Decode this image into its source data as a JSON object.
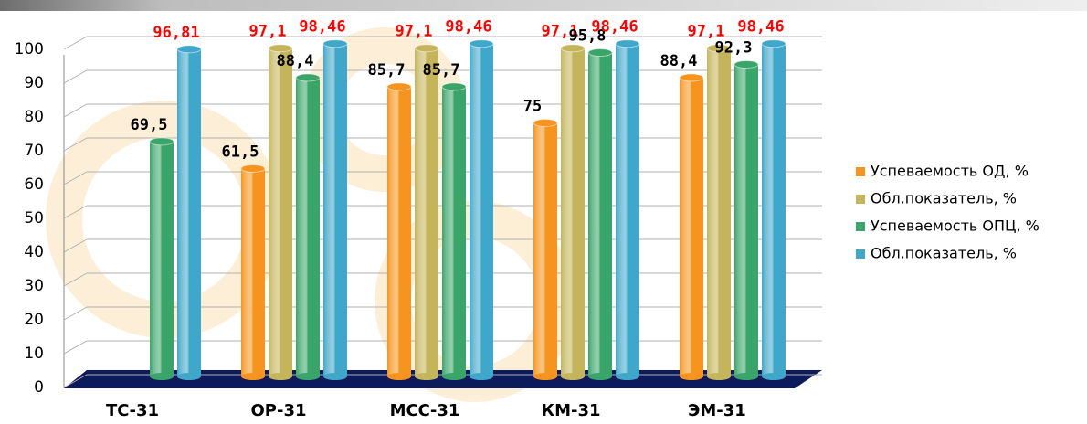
{
  "chart_data": {
    "type": "bar",
    "categories": [
      "ТС-31",
      "ОР-31",
      "МСС-31",
      "КМ-31",
      "ЭМ-31"
    ],
    "series": [
      {
        "name": "Успеваемость ОД, %",
        "color": "#f7941d",
        "label_color": "#000000",
        "values": [
          null,
          61.5,
          85.7,
          75,
          88.4
        ],
        "value_labels": [
          null,
          "61,5",
          "85,7",
          "75",
          "88,4"
        ]
      },
      {
        "name": "Обл.показатель, %",
        "color": "#c4b55a",
        "label_color": "#ff0000",
        "values": [
          null,
          97.1,
          97.1,
          97.1,
          97.1
        ],
        "value_labels": [
          null,
          "97,1",
          "97,1",
          "97,1",
          "97,1"
        ]
      },
      {
        "name": "Успеваемость ОПЦ, %",
        "color": "#3aa569",
        "label_color": "#000000",
        "values": [
          69.5,
          88.4,
          85.7,
          95.8,
          92.3
        ],
        "value_labels": [
          "69,5",
          "88,4",
          "85,7",
          "95,8",
          "92,3"
        ]
      },
      {
        "name": "Обл.показатель, %",
        "color": "#3fa7c9",
        "label_color": "#ff0000",
        "values": [
          96.81,
          98.46,
          98.46,
          98.46,
          98.46
        ],
        "value_labels": [
          "96,81",
          "98,46",
          "98,46",
          "98,46",
          "98,46"
        ]
      }
    ],
    "ylim": [
      0,
      100
    ],
    "yticks": [
      0,
      10,
      20,
      30,
      40,
      50,
      60,
      70,
      80,
      90,
      100
    ],
    "grid": true,
    "legend": "right"
  }
}
